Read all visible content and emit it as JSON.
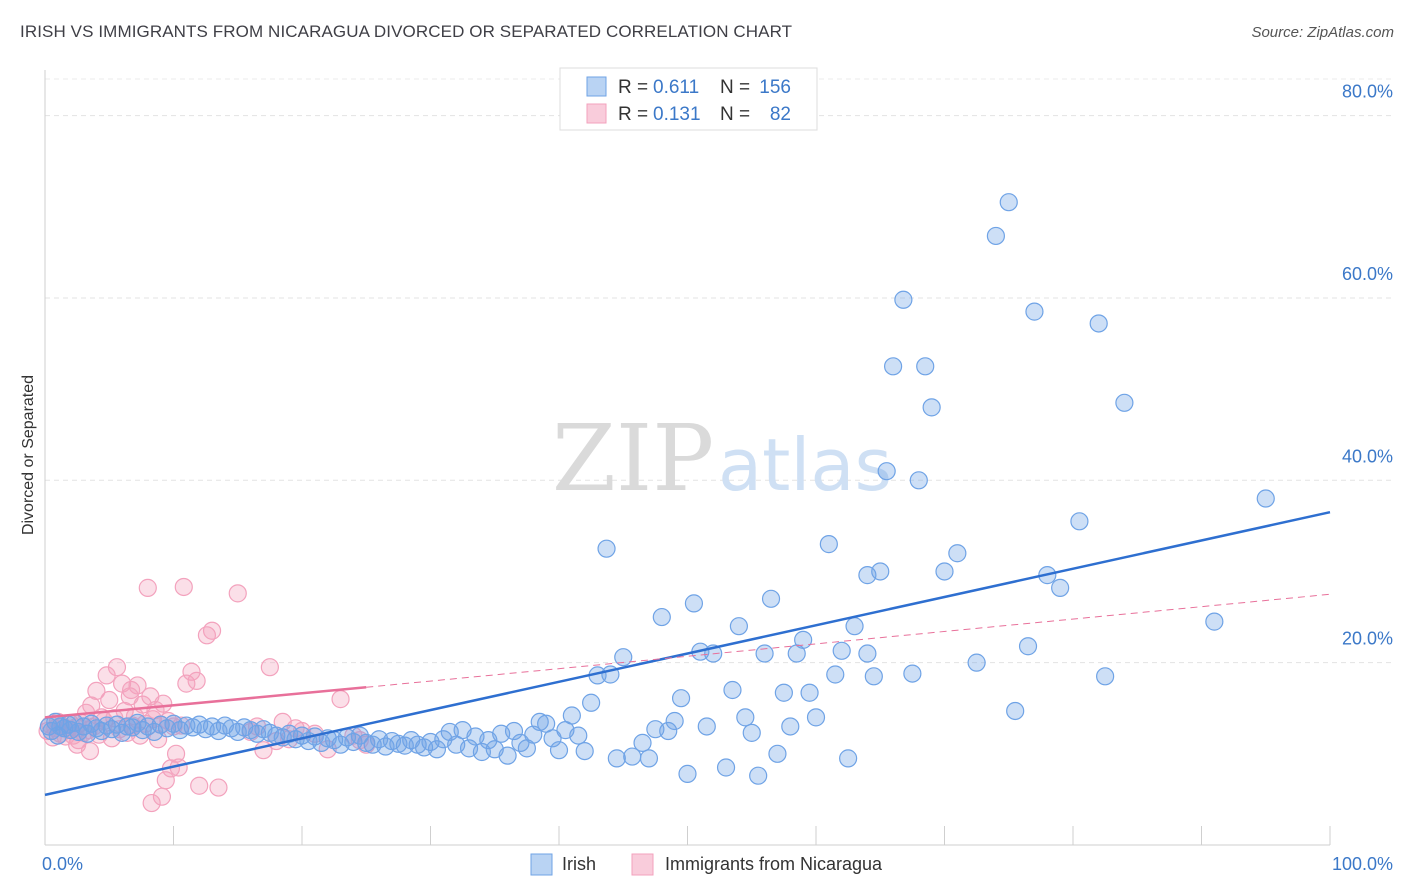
{
  "title": "IRISH VS IMMIGRANTS FROM NICARAGUA DIVORCED OR SEPARATED CORRELATION CHART",
  "source": "Source: ZipAtlas.com",
  "watermark": {
    "zip": "ZIP",
    "atlas": "atlas"
  },
  "legend": {
    "rows": [
      {
        "r_label": "R =",
        "r_value": "0.611",
        "n_label": "N =",
        "n_value": "156"
      },
      {
        "r_label": "R =",
        "r_value": "0.131",
        "n_label": "N =",
        "n_value": "82"
      }
    ]
  },
  "chart_data": {
    "type": "scatter",
    "title": "IRISH VS IMMIGRANTS FROM NICARAGUA DIVORCED OR SEPARATED CORRELATION CHART",
    "xlabel": "",
    "ylabel": "Divorced or Separated",
    "xlim": [
      0,
      100
    ],
    "ylim": [
      0,
      85
    ],
    "x_tick_labels": [
      "0.0%",
      "100.0%"
    ],
    "y_ticks": [
      20,
      40,
      60,
      80
    ],
    "y_tick_labels": [
      "20.0%",
      "40.0%",
      "60.0%",
      "80.0%"
    ],
    "grid": true,
    "legend_position": "top-center",
    "colors": {
      "irish": "#6fa3e6",
      "nicaragua": "#f3a2bd",
      "irish_line": "#2e6fd0",
      "nicaragua_line": "#e8709a"
    },
    "series": [
      {
        "name": "Irish",
        "r": 0.611,
        "n": 156,
        "trend": {
          "x": [
            0,
            100
          ],
          "y": [
            5.5,
            36.5
          ]
        },
        "points": [
          [
            0.3,
            13
          ],
          [
            0.5,
            12.5
          ],
          [
            0.8,
            13.5
          ],
          [
            1,
            12
          ],
          [
            1.2,
            13
          ],
          [
            1.5,
            12.8
          ],
          [
            1.8,
            13.2
          ],
          [
            2,
            12.6
          ],
          [
            2.3,
            13.4
          ],
          [
            2.6,
            12.4
          ],
          [
            3,
            13
          ],
          [
            3.3,
            12.2
          ],
          [
            3.6,
            13.3
          ],
          [
            4,
            12.8
          ],
          [
            4.4,
            12.5
          ],
          [
            4.8,
            13.1
          ],
          [
            5.2,
            12.7
          ],
          [
            5.6,
            13.2
          ],
          [
            6,
            12.3
          ],
          [
            6.4,
            13
          ],
          [
            6.8,
            12.9
          ],
          [
            7.2,
            13.4
          ],
          [
            7.6,
            12.6
          ],
          [
            8,
            13
          ],
          [
            8.5,
            12.4
          ],
          [
            9,
            13.2
          ],
          [
            9.5,
            12.8
          ],
          [
            10,
            13.3
          ],
          [
            10.5,
            12.6
          ],
          [
            11,
            13.1
          ],
          [
            11.5,
            12.9
          ],
          [
            12,
            13.2
          ],
          [
            12.5,
            12.7
          ],
          [
            13,
            13
          ],
          [
            13.5,
            12.5
          ],
          [
            14,
            13.1
          ],
          [
            14.5,
            12.8
          ],
          [
            15,
            12.4
          ],
          [
            15.5,
            12.9
          ],
          [
            16,
            12.6
          ],
          [
            16.5,
            12.2
          ],
          [
            17,
            12.7
          ],
          [
            17.5,
            12.3
          ],
          [
            18,
            12
          ],
          [
            18.5,
            11.8
          ],
          [
            19,
            12.2
          ],
          [
            19.5,
            11.6
          ],
          [
            20,
            12
          ],
          [
            20.5,
            11.4
          ],
          [
            21,
            11.9
          ],
          [
            21.5,
            11.2
          ],
          [
            22,
            11.7
          ],
          [
            22.5,
            11.5
          ],
          [
            23,
            11
          ],
          [
            23.5,
            11.8
          ],
          [
            24,
            11.3
          ],
          [
            24.5,
            12
          ],
          [
            25,
            11.2
          ],
          [
            25.5,
            11
          ],
          [
            26,
            11.6
          ],
          [
            26.5,
            10.8
          ],
          [
            27,
            11.4
          ],
          [
            27.5,
            11.1
          ],
          [
            28,
            10.9
          ],
          [
            28.5,
            11.5
          ],
          [
            29,
            11
          ],
          [
            29.5,
            10.7
          ],
          [
            30,
            11.3
          ],
          [
            30.5,
            10.5
          ],
          [
            31,
            11.6
          ],
          [
            31.5,
            12.4
          ],
          [
            32,
            11
          ],
          [
            32.5,
            12.6
          ],
          [
            33,
            10.6
          ],
          [
            33.5,
            11.9
          ],
          [
            34,
            10.2
          ],
          [
            34.5,
            11.5
          ],
          [
            35,
            10.5
          ],
          [
            35.5,
            12.2
          ],
          [
            36,
            9.8
          ],
          [
            36.5,
            12.5
          ],
          [
            37,
            11.2
          ],
          [
            37.5,
            10.6
          ],
          [
            38,
            12.1
          ],
          [
            38.5,
            13.5
          ],
          [
            39,
            13.3
          ],
          [
            39.5,
            11.7
          ],
          [
            40,
            10.4
          ],
          [
            40.5,
            12.6
          ],
          [
            41,
            14.2
          ],
          [
            41.5,
            12
          ],
          [
            42,
            10.3
          ],
          [
            42.5,
            15.6
          ],
          [
            43,
            18.6
          ],
          [
            43.7,
            32.5
          ],
          [
            44,
            18.7
          ],
          [
            44.5,
            9.5
          ],
          [
            45,
            20.6
          ],
          [
            45.7,
            9.7
          ],
          [
            46.5,
            11.2
          ],
          [
            47,
            9.5
          ],
          [
            47.5,
            12.7
          ],
          [
            48,
            25
          ],
          [
            48.5,
            12.5
          ],
          [
            49,
            13.6
          ],
          [
            49.5,
            16.1
          ],
          [
            50,
            7.8
          ],
          [
            50.5,
            26.5
          ],
          [
            51,
            21.2
          ],
          [
            51.5,
            13
          ],
          [
            52,
            21
          ],
          [
            53,
            8.5
          ],
          [
            53.5,
            17
          ],
          [
            54,
            24
          ],
          [
            54.5,
            14
          ],
          [
            55,
            12.3
          ],
          [
            55.5,
            7.6
          ],
          [
            56,
            21
          ],
          [
            56.5,
            27
          ],
          [
            57,
            10
          ],
          [
            57.5,
            16.7
          ],
          [
            58,
            13
          ],
          [
            58.5,
            21
          ],
          [
            59,
            22.5
          ],
          [
            59.5,
            16.7
          ],
          [
            60,
            14
          ],
          [
            61,
            33
          ],
          [
            61.5,
            18.7
          ],
          [
            62,
            21.3
          ],
          [
            62.5,
            9.5
          ],
          [
            63,
            24
          ],
          [
            64,
            29.6
          ],
          [
            64,
            21
          ],
          [
            64.5,
            18.5
          ],
          [
            65,
            30
          ],
          [
            65.5,
            41
          ],
          [
            66,
            52.5
          ],
          [
            66.8,
            59.8
          ],
          [
            67.5,
            18.8
          ],
          [
            68,
            40
          ],
          [
            68.5,
            52.5
          ],
          [
            69,
            48
          ],
          [
            70,
            30
          ],
          [
            71,
            32
          ],
          [
            72.5,
            20
          ],
          [
            74,
            66.8
          ],
          [
            75,
            70.5
          ],
          [
            75.5,
            14.7
          ],
          [
            76.5,
            21.8
          ],
          [
            77,
            58.5
          ],
          [
            78,
            29.6
          ],
          [
            79,
            28.2
          ],
          [
            80.5,
            35.5
          ],
          [
            82,
            57.2
          ],
          [
            82.5,
            18.5
          ],
          [
            84,
            48.5
          ],
          [
            91,
            24.5
          ],
          [
            95,
            38
          ]
        ]
      },
      {
        "name": "Immigrants from Nicaragua",
        "r": 0.131,
        "n": 82,
        "trend": {
          "x": [
            0,
            25
          ],
          "y": [
            14,
            17.3
          ]
        },
        "trend_dashed": {
          "x": [
            25,
            100
          ],
          "y": [
            17.3,
            27.5
          ]
        },
        "points": [
          [
            0.2,
            12.5
          ],
          [
            0.4,
            13.2
          ],
          [
            0.6,
            11.8
          ],
          [
            0.8,
            12.8
          ],
          [
            1,
            13.5
          ],
          [
            1.2,
            12.2
          ],
          [
            1.4,
            13
          ],
          [
            1.6,
            11.9
          ],
          [
            1.8,
            12.7
          ],
          [
            2,
            13.3
          ],
          [
            2.2,
            12
          ],
          [
            2.4,
            12.9
          ],
          [
            2.6,
            11.5
          ],
          [
            2.8,
            13.4
          ],
          [
            3,
            12.3
          ],
          [
            3.2,
            14.5
          ],
          [
            3.4,
            12.6
          ],
          [
            3.6,
            15.3
          ],
          [
            3.8,
            13
          ],
          [
            4,
            16.9
          ],
          [
            4.2,
            12.1
          ],
          [
            4.4,
            14
          ],
          [
            4.6,
            13.6
          ],
          [
            4.8,
            18.6
          ],
          [
            5,
            15.9
          ],
          [
            5.2,
            11.7
          ],
          [
            5.4,
            13.9
          ],
          [
            5.6,
            19.5
          ],
          [
            5.8,
            12.7
          ],
          [
            6,
            17.7
          ],
          [
            6.2,
            14.7
          ],
          [
            6.4,
            12.3
          ],
          [
            6.6,
            16.3
          ],
          [
            6.8,
            13.1
          ],
          [
            7,
            14.1
          ],
          [
            7.2,
            17.5
          ],
          [
            7.4,
            12
          ],
          [
            7.6,
            15.4
          ],
          [
            7.8,
            13.3
          ],
          [
            8,
            28.2
          ],
          [
            8.2,
            16.3
          ],
          [
            8.4,
            13.8
          ],
          [
            8.6,
            14.8
          ],
          [
            8.8,
            11.6
          ],
          [
            9,
            13.2
          ],
          [
            9.2,
            15.5
          ],
          [
            9.4,
            7.1
          ],
          [
            9.6,
            13.6
          ],
          [
            9.8,
            8.4
          ],
          [
            10,
            13
          ],
          [
            10.2,
            10
          ],
          [
            10.4,
            8.5
          ],
          [
            10.6,
            13.1
          ],
          [
            10.8,
            28.3
          ],
          [
            11,
            17.7
          ],
          [
            11.4,
            19
          ],
          [
            11.8,
            18
          ],
          [
            12,
            6.5
          ],
          [
            12.6,
            23
          ],
          [
            13,
            23.5
          ],
          [
            13.5,
            6.3
          ],
          [
            15,
            27.6
          ],
          [
            16,
            12.4
          ],
          [
            16.5,
            13
          ],
          [
            17,
            10.4
          ],
          [
            17.5,
            19.5
          ],
          [
            18,
            11.4
          ],
          [
            18.5,
            13.5
          ],
          [
            19,
            11.6
          ],
          [
            19.5,
            12.8
          ],
          [
            20,
            12.5
          ],
          [
            21,
            12.2
          ],
          [
            22,
            10.5
          ],
          [
            23,
            16
          ],
          [
            24,
            12
          ],
          [
            24.5,
            11.5
          ],
          [
            25,
            11
          ],
          [
            2.5,
            11
          ],
          [
            3.5,
            10.3
          ],
          [
            6.7,
            17
          ],
          [
            8.3,
            4.6
          ],
          [
            9.1,
            5.3
          ]
        ]
      }
    ]
  }
}
